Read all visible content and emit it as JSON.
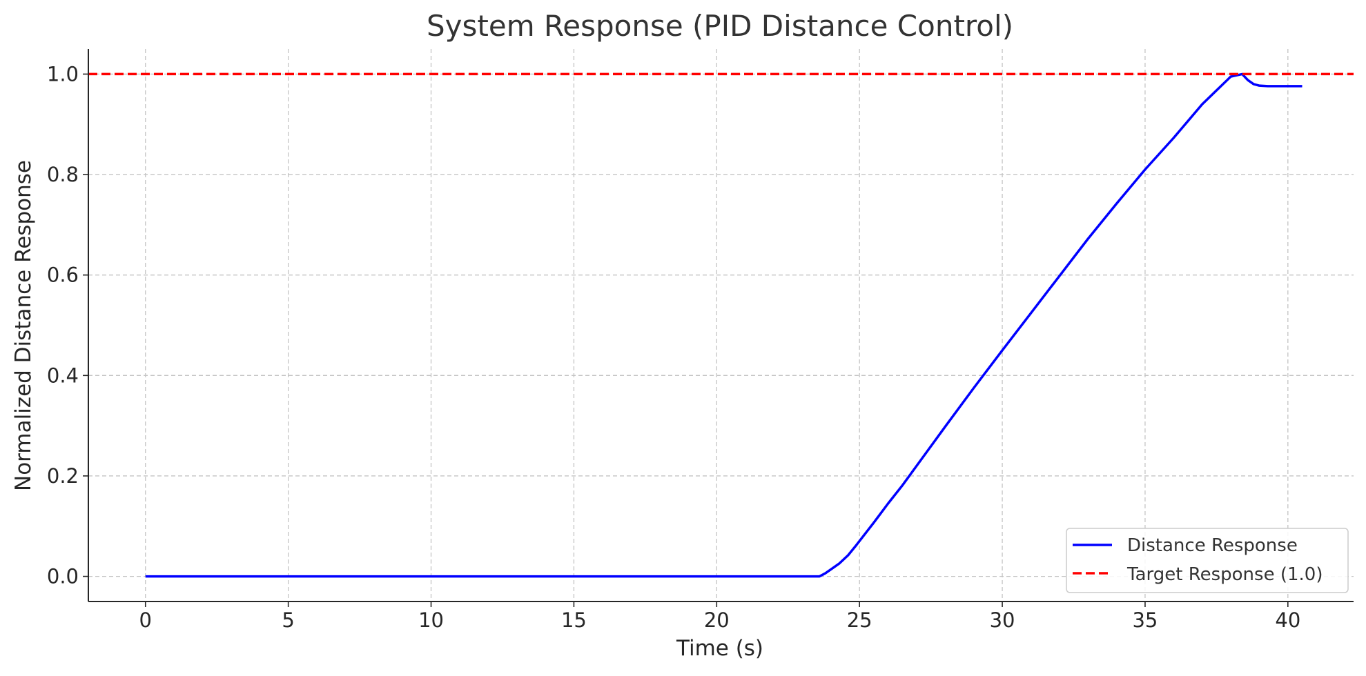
{
  "chart_data": {
    "type": "line",
    "title": "System Response (PID Distance Control)",
    "xlabel": "Time (s)",
    "ylabel": "Normalized Distance Response",
    "xlim": [
      -2,
      42.3
    ],
    "ylim": [
      -0.05,
      1.05
    ],
    "xticks": [
      0,
      5,
      10,
      15,
      20,
      25,
      30,
      35,
      40
    ],
    "yticks": [
      0.0,
      0.2,
      0.4,
      0.6,
      0.8,
      1.0
    ],
    "xtick_labels": [
      "0",
      "5",
      "10",
      "15",
      "20",
      "25",
      "30",
      "35",
      "40"
    ],
    "ytick_labels": [
      "0.0",
      "0.2",
      "0.4",
      "0.6",
      "0.8",
      "1.0"
    ],
    "grid": true,
    "legend_position": "bottom-right",
    "series": [
      {
        "name": "Distance Response",
        "color": "#0000ff",
        "style": "solid",
        "x": [
          0,
          5,
          10,
          15,
          20,
          23.6,
          23.8,
          24.0,
          24.3,
          24.6,
          24.9,
          25.2,
          25.5,
          26.0,
          26.5,
          27.0,
          28.0,
          29.0,
          30.0,
          31.0,
          32.0,
          33.0,
          34.0,
          35.0,
          36.0,
          37.0,
          38.0,
          38.4,
          38.6,
          38.8,
          39.0,
          39.3,
          40.0,
          40.5
        ],
        "y": [
          0,
          0,
          0,
          0,
          0,
          0,
          0.006,
          0.014,
          0.026,
          0.042,
          0.063,
          0.085,
          0.107,
          0.145,
          0.181,
          0.22,
          0.298,
          0.375,
          0.45,
          0.524,
          0.598,
          0.672,
          0.742,
          0.81,
          0.873,
          0.94,
          0.995,
          1.0,
          0.988,
          0.98,
          0.977,
          0.976,
          0.976,
          0.976
        ]
      },
      {
        "name": "Target Response (1.0)",
        "color": "#ff0000",
        "style": "dashed",
        "x": [
          -2,
          42.3
        ],
        "y": [
          1.0,
          1.0
        ]
      }
    ]
  }
}
